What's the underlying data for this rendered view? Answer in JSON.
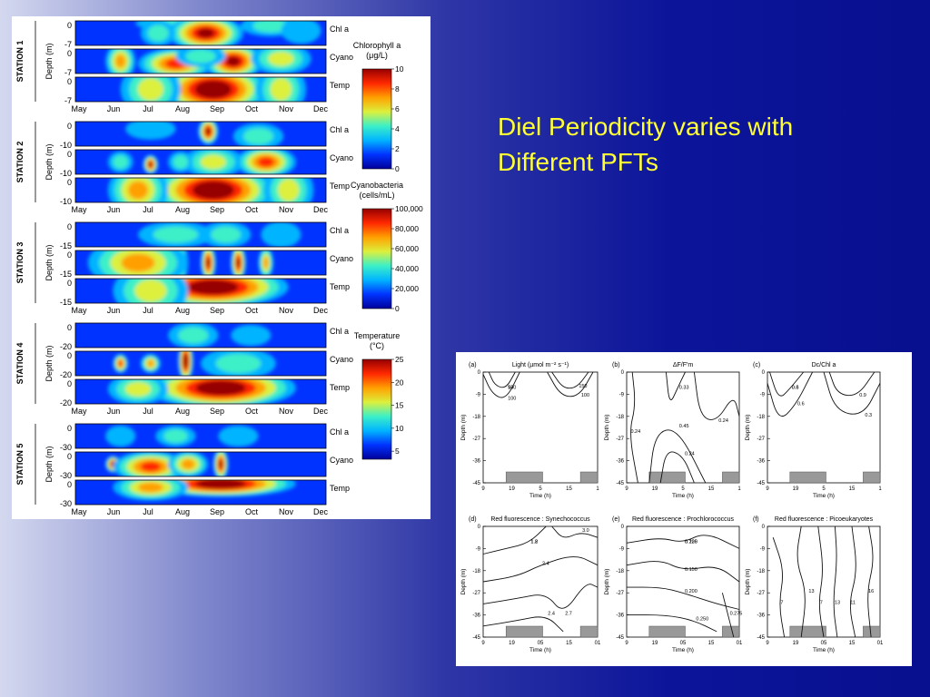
{
  "slide": {
    "title_line1": "Diel Periodicity varies with",
    "title_line2": "Different PFTs"
  },
  "chart_data": [
    {
      "type": "heatmap",
      "months": [
        "May",
        "Jun",
        "Jul",
        "Aug",
        "Sep",
        "Oct",
        "Nov",
        "Dec"
      ],
      "row_labels": [
        "Chl a",
        "Cyano",
        "Temp"
      ],
      "depth_axis_label": "Depth (m)",
      "stations": [
        {
          "label": "STATION 1",
          "max_depth": "-7"
        },
        {
          "label": "STATION 2",
          "max_depth": "-10"
        },
        {
          "label": "STATION 3",
          "max_depth": "-15"
        },
        {
          "label": "STATION 4",
          "max_depth": "-20"
        },
        {
          "label": "STATION 5",
          "max_depth": "-30"
        }
      ],
      "colorbars": [
        {
          "title_line1": "Chlorophyll a",
          "title_line2": "(μg/L)",
          "ticks": [
            "10",
            "8",
            "6",
            "4",
            "2",
            "0"
          ]
        },
        {
          "title_line1": "Cyanobacteria",
          "title_line2": "(cells/mL)",
          "ticks": [
            "100,000",
            "80,000",
            "60,000",
            "40,000",
            "20,000",
            "0"
          ]
        },
        {
          "title_line1": "Temperature",
          "title_line2": "(°C)",
          "ticks": [
            "25",
            "20",
            "15",
            "10",
            "5"
          ]
        }
      ],
      "colormap": [
        "#00009a",
        "#0033ff",
        "#00b4ff",
        "#3cf0c8",
        "#dcf03c",
        "#ffa000",
        "#ff2800",
        "#960000"
      ],
      "surface_zero": "0",
      "panels": [
        [
          [
            {
              "t": 0.42,
              "d": 0.1,
              "rx": 0.18,
              "ry": 0.3,
              "v": 0.3
            },
            {
              "t": 0.52,
              "d": 0.5,
              "rx": 0.15,
              "ry": 0.7,
              "v": 0.9
            },
            {
              "t": 0.33,
              "d": 0.5,
              "rx": 0.07,
              "ry": 0.5,
              "v": 0.35
            },
            {
              "t": 0.78,
              "d": 0.2,
              "rx": 0.12,
              "ry": 0.4,
              "v": 0.25
            },
            {
              "t": 0.9,
              "d": 0.4,
              "rx": 0.08,
              "ry": 0.5,
              "v": 0.2
            }
          ],
          [
            {
              "t": 0.18,
              "d": 0.5,
              "rx": 0.06,
              "ry": 0.7,
              "v": 0.55
            },
            {
              "t": 0.4,
              "d": 0.6,
              "rx": 0.15,
              "ry": 0.6,
              "v": 0.7
            },
            {
              "t": 0.63,
              "d": 0.5,
              "rx": 0.12,
              "ry": 0.7,
              "v": 0.85
            },
            {
              "t": 0.82,
              "d": 0.4,
              "rx": 0.12,
              "ry": 0.6,
              "v": 0.45
            },
            {
              "t": 0.5,
              "d": 0.3,
              "rx": 0.1,
              "ry": 0.4,
              "v": 0.35
            }
          ],
          [
            {
              "t": 0.55,
              "d": 0.5,
              "rx": 0.22,
              "ry": 1.0,
              "v": 1.0
            },
            {
              "t": 0.3,
              "d": 0.5,
              "rx": 0.12,
              "ry": 1.0,
              "v": 0.45
            },
            {
              "t": 0.82,
              "d": 0.5,
              "rx": 0.1,
              "ry": 1.0,
              "v": 0.4
            }
          ]
        ],
        [
          [
            {
              "t": 0.53,
              "d": 0.4,
              "rx": 0.04,
              "ry": 0.5,
              "v": 0.9
            },
            {
              "t": 0.73,
              "d": 0.6,
              "rx": 0.1,
              "ry": 0.5,
              "v": 0.25
            },
            {
              "t": 0.3,
              "d": 0.3,
              "rx": 0.1,
              "ry": 0.4,
              "v": 0.2
            }
          ],
          [
            {
              "t": 0.3,
              "d": 0.6,
              "rx": 0.03,
              "ry": 0.35,
              "v": 0.85
            },
            {
              "t": 0.55,
              "d": 0.5,
              "rx": 0.12,
              "ry": 0.6,
              "v": 0.45
            },
            {
              "t": 0.76,
              "d": 0.5,
              "rx": 0.12,
              "ry": 0.6,
              "v": 0.7
            },
            {
              "t": 0.18,
              "d": 0.5,
              "rx": 0.05,
              "ry": 0.4,
              "v": 0.25
            },
            {
              "t": 0.42,
              "d": 0.5,
              "rx": 0.05,
              "ry": 0.4,
              "v": 0.3
            }
          ],
          [
            {
              "t": 0.55,
              "d": 0.5,
              "rx": 0.25,
              "ry": 1.0,
              "v": 1.0
            },
            {
              "t": 0.25,
              "d": 0.5,
              "rx": 0.12,
              "ry": 1.0,
              "v": 0.55
            },
            {
              "t": 0.85,
              "d": 0.5,
              "rx": 0.1,
              "ry": 1.0,
              "v": 0.4
            }
          ]
        ],
        [
          [
            {
              "t": 0.4,
              "d": 0.5,
              "rx": 0.15,
              "ry": 0.5,
              "v": 0.25
            },
            {
              "t": 0.6,
              "d": 0.5,
              "rx": 0.1,
              "ry": 0.5,
              "v": 0.3
            },
            {
              "t": 0.82,
              "d": 0.5,
              "rx": 0.08,
              "ry": 0.5,
              "v": 0.2
            }
          ],
          [
            {
              "t": 0.18,
              "d": 0.5,
              "rx": 0.08,
              "ry": 0.8,
              "v": 0.95
            },
            {
              "t": 0.31,
              "d": 0.5,
              "rx": 0.03,
              "ry": 0.7,
              "v": 0.8
            },
            {
              "t": 0.42,
              "d": 0.5,
              "rx": 0.03,
              "ry": 0.7,
              "v": 0.8
            },
            {
              "t": 0.53,
              "d": 0.5,
              "rx": 0.03,
              "ry": 0.7,
              "v": 0.8
            },
            {
              "t": 0.65,
              "d": 0.5,
              "rx": 0.03,
              "ry": 0.7,
              "v": 0.8
            },
            {
              "t": 0.76,
              "d": 0.5,
              "rx": 0.03,
              "ry": 0.6,
              "v": 0.6
            },
            {
              "t": 0.25,
              "d": 0.5,
              "rx": 0.2,
              "ry": 1.0,
              "v": 0.5
            }
          ],
          [
            {
              "t": 0.55,
              "d": 0.35,
              "rx": 0.3,
              "ry": 0.8,
              "v": 1.0
            },
            {
              "t": 0.3,
              "d": 0.5,
              "rx": 0.15,
              "ry": 1.0,
              "v": 0.45
            }
          ]
        ],
        [
          [
            {
              "t": 0.47,
              "d": 0.5,
              "rx": 0.1,
              "ry": 0.5,
              "v": 0.25
            },
            {
              "t": 0.7,
              "d": 0.5,
              "rx": 0.08,
              "ry": 0.4,
              "v": 0.15
            }
          ],
          [
            {
              "t": 0.44,
              "d": 0.4,
              "rx": 0.03,
              "ry": 0.8,
              "v": 0.95
            },
            {
              "t": 0.18,
              "d": 0.5,
              "rx": 0.03,
              "ry": 0.35,
              "v": 0.65
            },
            {
              "t": 0.3,
              "d": 0.5,
              "rx": 0.04,
              "ry": 0.35,
              "v": 0.5
            },
            {
              "t": 0.65,
              "d": 0.5,
              "rx": 0.15,
              "ry": 0.6,
              "v": 0.3
            }
          ],
          [
            {
              "t": 0.58,
              "d": 0.35,
              "rx": 0.3,
              "ry": 0.8,
              "v": 1.0
            },
            {
              "t": 0.25,
              "d": 0.4,
              "rx": 0.12,
              "ry": 0.6,
              "v": 0.4
            }
          ]
        ],
        [
          [
            {
              "t": 0.4,
              "d": 0.5,
              "rx": 0.08,
              "ry": 0.4,
              "v": 0.25
            },
            {
              "t": 0.18,
              "d": 0.5,
              "rx": 0.06,
              "ry": 0.4,
              "v": 0.2
            },
            {
              "t": 0.65,
              "d": 0.5,
              "rx": 0.08,
              "ry": 0.4,
              "v": 0.15
            }
          ],
          [
            {
              "t": 0.15,
              "d": 0.5,
              "rx": 0.03,
              "ry": 0.3,
              "v": 0.8
            },
            {
              "t": 0.58,
              "d": 0.5,
              "rx": 0.03,
              "ry": 0.6,
              "v": 0.85
            },
            {
              "t": 0.3,
              "d": 0.6,
              "rx": 0.15,
              "ry": 0.6,
              "v": 0.65
            },
            {
              "t": 0.45,
              "d": 0.5,
              "rx": 0.08,
              "ry": 0.5,
              "v": 0.55
            }
          ],
          [
            {
              "t": 0.58,
              "d": 0.15,
              "rx": 0.3,
              "ry": 0.5,
              "v": 1.0
            },
            {
              "t": 0.3,
              "d": 0.3,
              "rx": 0.15,
              "ry": 0.5,
              "v": 0.5
            }
          ]
        ]
      ]
    },
    {
      "type": "line",
      "kind": "contour",
      "panels": [
        {
          "letter": "(a)",
          "title": "Light (µmol m⁻² s⁻¹)",
          "contour_labels": [
            "50",
            "100",
            "150",
            "100",
            "150"
          ]
        },
        {
          "letter": "(b)",
          "title": "ΔF/F′m",
          "contour_labels": [
            "0.24",
            "0.33",
            "0.24",
            "0.24",
            "0.45"
          ]
        },
        {
          "letter": "(c)",
          "title": "Dc/Chl a",
          "contour_labels": [
            "0.3",
            "0.6",
            "0.9",
            "0.3",
            "0.6"
          ]
        },
        {
          "letter": "(d)",
          "title": "Red fluorescence : Synechococcus",
          "contour_labels": [
            "1.2",
            "2.4",
            "2.7",
            "2.4",
            "3.0",
            "1.8"
          ]
        },
        {
          "letter": "(e)",
          "title": "Red fluorescence : Prochlorococcus",
          "contour_labels": [
            "0.100",
            "0.150",
            "0.200",
            "0.250",
            "0.275",
            "0.225"
          ]
        },
        {
          "letter": "(f)",
          "title": "Red fluorescence : Picoeukaryotes",
          "contour_labels": [
            "7",
            "13",
            "7",
            "13",
            "11",
            "16"
          ]
        }
      ],
      "yticks_top": [
        "0",
        "-9",
        "-18",
        "-27",
        "-36",
        "-45"
      ],
      "xticks_top": [
        "9",
        "19",
        "5",
        "15",
        "1"
      ],
      "xticks_bottom": [
        "9",
        "19",
        "05",
        "15",
        "01"
      ],
      "xlabel": "Time (h)",
      "ylabel": "Depth (m)"
    }
  ]
}
